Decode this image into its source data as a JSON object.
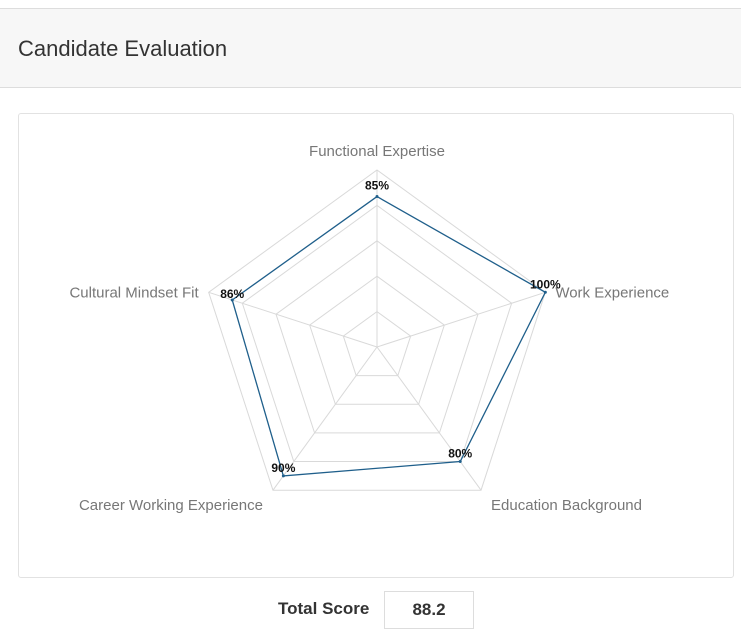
{
  "header": {
    "title": "Candidate Evaluation"
  },
  "chart_data": {
    "type": "radar",
    "categories": [
      "Functional Expertise",
      "Work Experience",
      "Education Background",
      "Career Working Experience",
      "Cultural Mindset Fit"
    ],
    "series": [
      {
        "values": [
          85,
          100,
          80,
          90,
          86
        ]
      }
    ],
    "value_labels": [
      "85%",
      "100%",
      "80%",
      "90%",
      "86%"
    ],
    "range": [
      0,
      100
    ],
    "rings": 5,
    "colors": {
      "series": "#1f5f8b",
      "grid": "#d9d9d9"
    }
  },
  "footer": {
    "total_label": "Total Score",
    "total_value": "88.2"
  }
}
